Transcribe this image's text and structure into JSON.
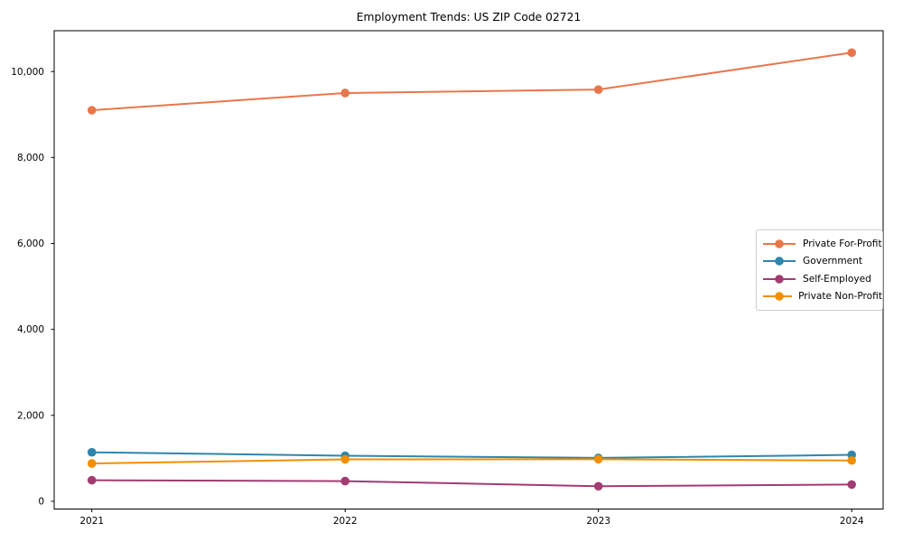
{
  "chart_data": {
    "type": "line",
    "title": "Employment Trends: US ZIP Code 02721",
    "categories": [
      2021,
      2022,
      2023,
      2024
    ],
    "xtick_labels": [
      "2021",
      "2022",
      "2023",
      "2024"
    ],
    "series": [
      {
        "name": "Private For-Profit",
        "color": "#E8764B",
        "values": [
          9100,
          9500,
          9580,
          10440
        ]
      },
      {
        "name": "Government",
        "color": "#2E86AB",
        "values": [
          1140,
          1060,
          1010,
          1080
        ]
      },
      {
        "name": "Self-Employed",
        "color": "#A23B72",
        "values": [
          490,
          470,
          350,
          390
        ]
      },
      {
        "name": "Private Non-Profit",
        "color": "#F18F01",
        "values": [
          880,
          975,
          980,
          950
        ]
      }
    ],
    "xlabel": "",
    "ylabel": "",
    "yticks": [
      0,
      2000,
      4000,
      6000,
      8000,
      10000
    ],
    "ytick_labels": [
      "0",
      "2,000",
      "4,000",
      "6,000",
      "8,000",
      "10,000"
    ],
    "ylim": [
      -180,
      10950
    ],
    "grid": false,
    "marker": "circle",
    "line_width": 2,
    "axis_color": "#000000",
    "text_color": "#000000",
    "background": "#ffffff",
    "legend": {
      "position": "center right",
      "border_color": "#cccccc",
      "background": "#ffffff"
    }
  }
}
